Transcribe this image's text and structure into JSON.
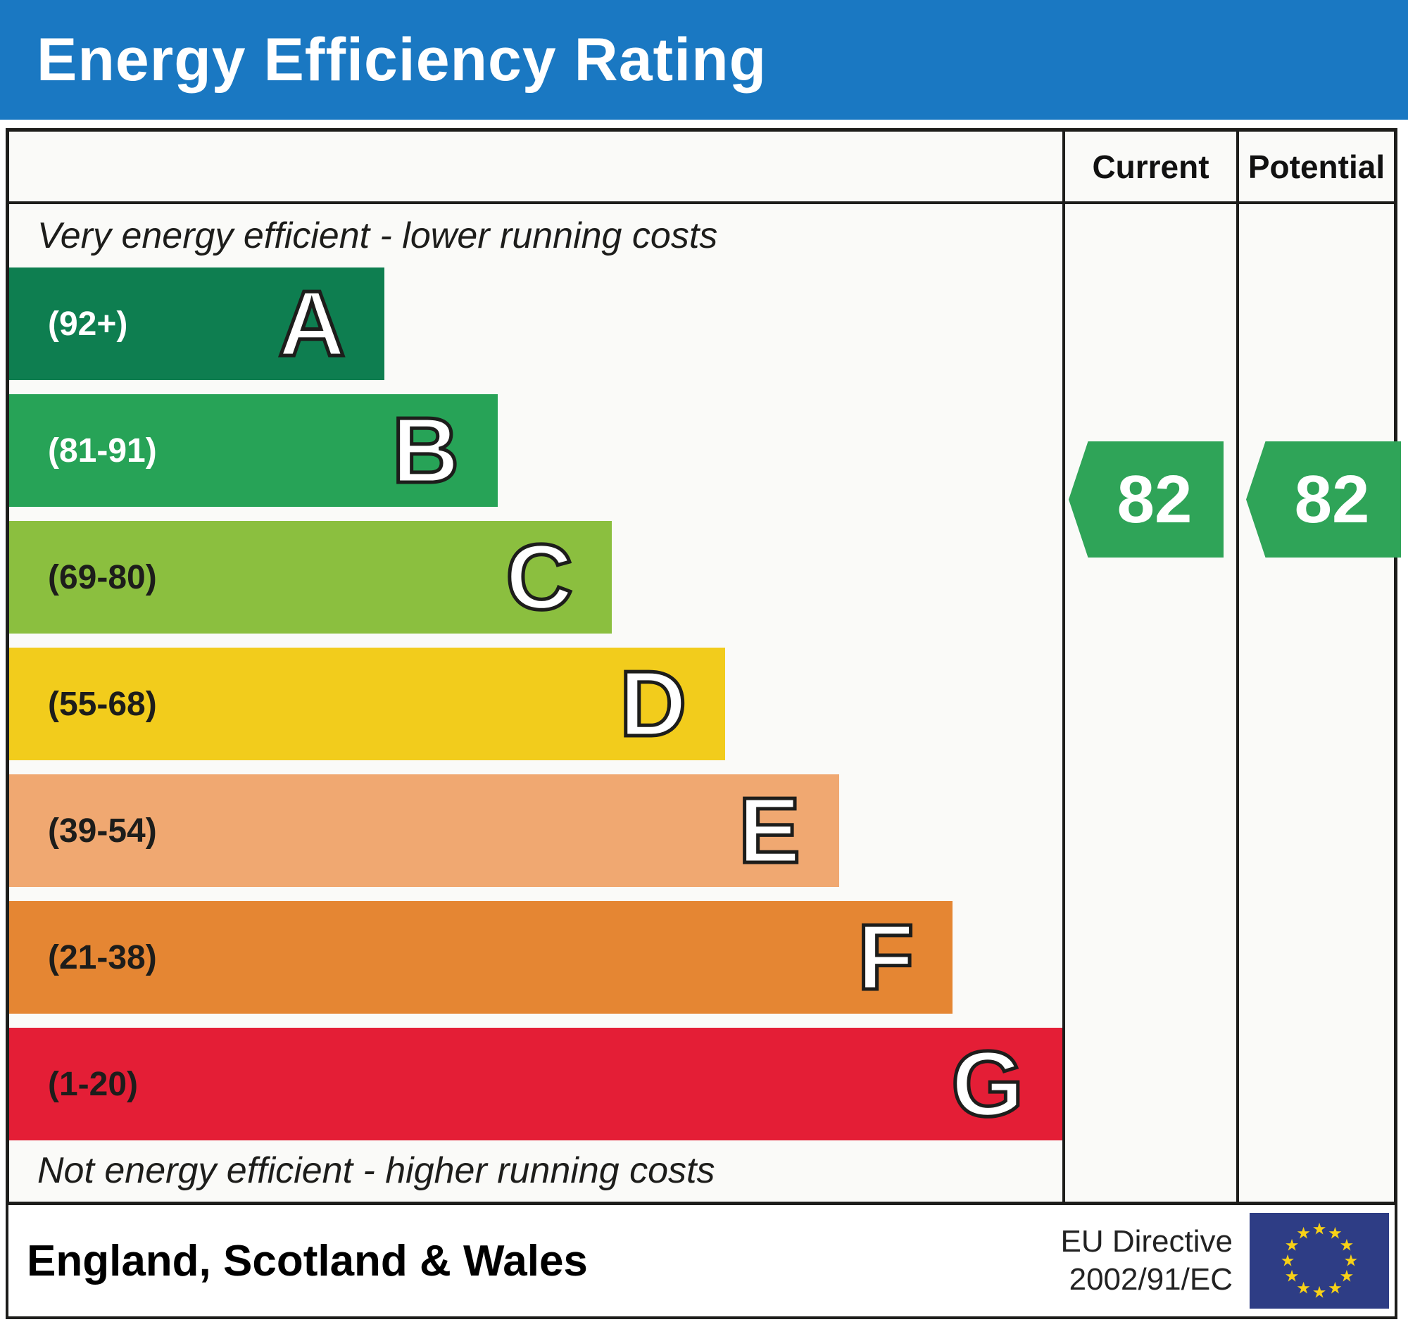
{
  "header": {
    "title": "Energy Efficiency Rating",
    "bg_color": "#1a78c2"
  },
  "table": {
    "columns": {
      "current_label": "Current",
      "potential_label": "Potential"
    },
    "top_note": "Very energy efficient - lower running costs",
    "bottom_note": "Not energy efficient - higher running costs",
    "bands": [
      {
        "letter": "A",
        "range": "(92+)",
        "color": "#0e7e50",
        "label_color": "#ffffff",
        "width_pct": 35.6
      },
      {
        "letter": "B",
        "range": "(81-91)",
        "color": "#27a357",
        "label_color": "#ffffff",
        "width_pct": 46.4
      },
      {
        "letter": "C",
        "range": "(69-80)",
        "color": "#8bbf3f",
        "label_color": "#1d1d1b",
        "width_pct": 57.2
      },
      {
        "letter": "D",
        "range": "(55-68)",
        "color": "#f2cc1c",
        "label_color": "#1d1d1b",
        "width_pct": 68.0
      },
      {
        "letter": "E",
        "range": "(39-54)",
        "color": "#f0a871",
        "label_color": "#1d1d1b",
        "width_pct": 78.8
      },
      {
        "letter": "F",
        "range": "(21-38)",
        "color": "#e58633",
        "label_color": "#1d1d1b",
        "width_pct": 89.6
      },
      {
        "letter": "G",
        "range": "(1-20)",
        "color": "#e41e36",
        "label_color": "#1d1d1b",
        "width_pct": 100
      }
    ],
    "current": {
      "value": "82",
      "band": "B",
      "color": "#2fa458"
    },
    "potential": {
      "value": "82",
      "band": "B",
      "color": "#2fa458"
    }
  },
  "footer": {
    "region": "England, Scotland & Wales",
    "directive_line1": "EU Directive",
    "directive_line2": "2002/91/EC",
    "eu_flag": {
      "bg": "#2e3d85",
      "star_color": "#f7d117",
      "star_count": 12
    }
  },
  "chart_data": {
    "type": "bar",
    "title": "Energy Efficiency Rating",
    "categories": [
      "A",
      "B",
      "C",
      "D",
      "E",
      "F",
      "G"
    ],
    "band_ranges": [
      "92+",
      "81-91",
      "69-80",
      "55-68",
      "39-54",
      "21-38",
      "1-20"
    ],
    "values": [
      35.6,
      46.4,
      57.2,
      68.0,
      78.8,
      89.6,
      100
    ],
    "values_unit": "relative bar length, percent of chart width",
    "band_colors": [
      "#0e7e50",
      "#27a357",
      "#8bbf3f",
      "#f2cc1c",
      "#f0a871",
      "#e58633",
      "#e41e36"
    ],
    "current_rating": 82,
    "potential_rating": 82,
    "rating_band": "B",
    "annotations": [
      "Very energy efficient - lower running costs",
      "Not energy efficient - higher running costs"
    ],
    "region": "England, Scotland & Wales",
    "directive": "EU Directive 2002/91/EC",
    "legend_position": "none",
    "grid": false
  }
}
